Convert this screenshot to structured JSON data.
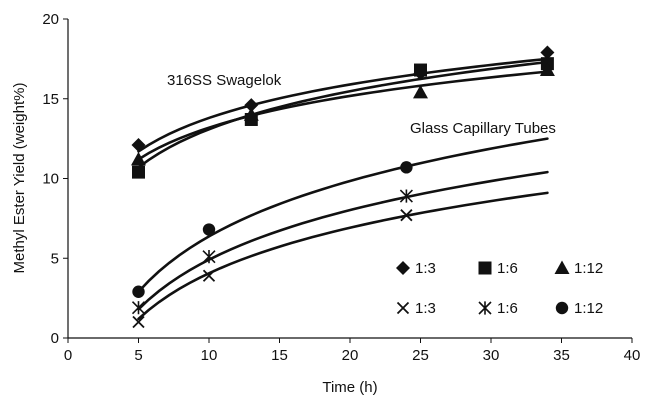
{
  "chart_data": {
    "type": "scatter",
    "xlabel": "Time (h)",
    "ylabel": "Methyl Ester Yield (weight%)",
    "xlim": [
      0,
      40
    ],
    "ylim": [
      0,
      20
    ],
    "x_ticks": [
      "0",
      "5",
      "10",
      "15",
      "20",
      "25",
      "30",
      "35",
      "40"
    ],
    "y_ticks": [
      "0",
      "5",
      "10",
      "15",
      "20"
    ],
    "grid": false,
    "annotations": [
      "316SS Swagelok",
      "Glass Capillary Tubes"
    ],
    "legend_position": "bottom-right",
    "series": [
      {
        "name": "1:3",
        "group": "316SS Swagelok",
        "marker": "diamond",
        "x": [
          5,
          13,
          25,
          34
        ],
        "y": [
          12.1,
          14.6,
          16.6,
          17.9
        ],
        "fit_x": [
          5,
          34
        ],
        "fit_y": [
          11.7,
          17.5
        ]
      },
      {
        "name": "1:6",
        "group": "316SS Swagelok",
        "marker": "square",
        "x": [
          5,
          13,
          25,
          34
        ],
        "y": [
          10.4,
          13.7,
          16.8,
          17.2
        ],
        "fit_x": [
          5,
          34
        ],
        "fit_y": [
          10.7,
          17.3
        ]
      },
      {
        "name": "1:12",
        "group": "316SS Swagelok",
        "marker": "triangle",
        "x": [
          5,
          13,
          25,
          34
        ],
        "y": [
          11.2,
          14.0,
          15.4,
          16.8
        ],
        "fit_x": [
          5,
          34
        ],
        "fit_y": [
          11.2,
          16.7
        ]
      },
      {
        "name": "1:3",
        "group": "Glass Capillary Tubes",
        "marker": "x",
        "x": [
          5,
          10,
          24
        ],
        "y": [
          1.0,
          3.9,
          7.7
        ],
        "fit_x": [
          5,
          34
        ],
        "fit_y": [
          1.2,
          9.1
        ]
      },
      {
        "name": "1:6",
        "group": "Glass Capillary Tubes",
        "marker": "asterisk",
        "x": [
          5,
          10,
          24
        ],
        "y": [
          1.9,
          5.1,
          8.9
        ],
        "fit_x": [
          5,
          34
        ],
        "fit_y": [
          1.8,
          10.4
        ]
      },
      {
        "name": "1:12",
        "group": "Glass Capillary Tubes",
        "marker": "circle",
        "x": [
          5,
          10,
          24
        ],
        "y": [
          2.9,
          6.8,
          10.7
        ],
        "fit_x": [
          5,
          34
        ],
        "fit_y": [
          2.9,
          12.5
        ]
      }
    ],
    "colors": {
      "ink": "#111111",
      "background": "#ffffff"
    }
  }
}
